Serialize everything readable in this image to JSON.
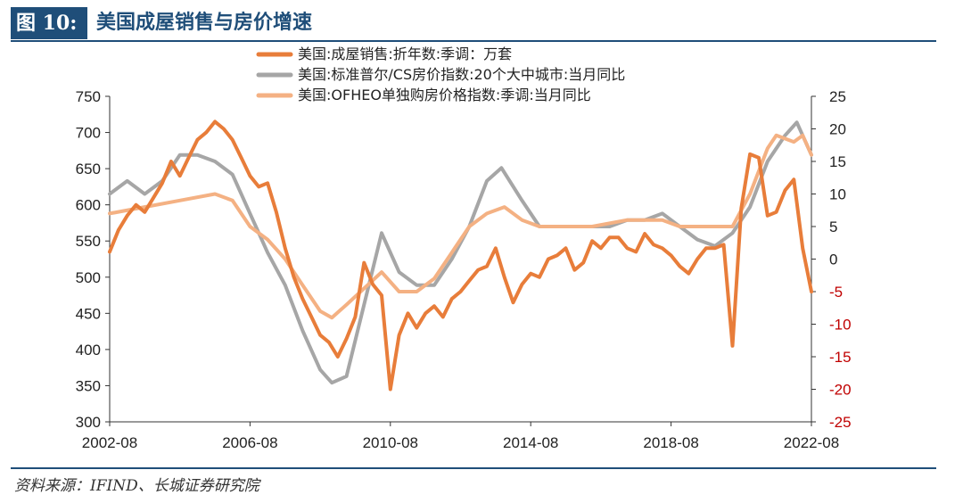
{
  "figure_tag": "图 10:",
  "title": "美国成屋销售与房价增速",
  "source": "资料来源：IFIND、长城证券研究院",
  "chart_data": {
    "type": "line",
    "x_tick_labels": [
      "2002-08",
      "2006-08",
      "2010-08",
      "2014-08",
      "2018-08",
      "2022-08"
    ],
    "x_range": [
      "2002-08",
      "2022-08"
    ],
    "y_left": {
      "range": [
        300,
        750
      ],
      "ticks": [
        300,
        350,
        400,
        450,
        500,
        550,
        600,
        650,
        700,
        750
      ]
    },
    "y_right": {
      "range": [
        -25,
        25
      ],
      "ticks": [
        -25,
        -20,
        -15,
        -10,
        -5,
        0,
        5,
        10,
        15,
        20,
        25
      ]
    },
    "grid": false,
    "legend_position": "top-center",
    "series": [
      {
        "name": "美国:成屋销售:折年数:季调：万套",
        "axis": "left",
        "color": "#e87d3a",
        "points": [
          [
            "2002-08",
            535
          ],
          [
            "2002-11",
            565
          ],
          [
            "2003-02",
            585
          ],
          [
            "2003-05",
            600
          ],
          [
            "2003-08",
            590
          ],
          [
            "2003-11",
            610
          ],
          [
            "2004-02",
            630
          ],
          [
            "2004-05",
            660
          ],
          [
            "2004-08",
            640
          ],
          [
            "2004-11",
            665
          ],
          [
            "2005-02",
            690
          ],
          [
            "2005-05",
            700
          ],
          [
            "2005-08",
            715
          ],
          [
            "2005-11",
            705
          ],
          [
            "2006-02",
            690
          ],
          [
            "2006-05",
            665
          ],
          [
            "2006-08",
            640
          ],
          [
            "2006-11",
            625
          ],
          [
            "2007-02",
            630
          ],
          [
            "2007-05",
            590
          ],
          [
            "2007-08",
            540
          ],
          [
            "2007-11",
            500
          ],
          [
            "2008-02",
            470
          ],
          [
            "2008-05",
            445
          ],
          [
            "2008-08",
            420
          ],
          [
            "2008-11",
            410
          ],
          [
            "2009-02",
            390
          ],
          [
            "2009-05",
            415
          ],
          [
            "2009-08",
            445
          ],
          [
            "2009-11",
            520
          ],
          [
            "2010-02",
            490
          ],
          [
            "2010-05",
            475
          ],
          [
            "2010-08",
            345
          ],
          [
            "2010-11",
            420
          ],
          [
            "2011-02",
            450
          ],
          [
            "2011-05",
            430
          ],
          [
            "2011-08",
            450
          ],
          [
            "2011-11",
            460
          ],
          [
            "2012-02",
            445
          ],
          [
            "2012-05",
            470
          ],
          [
            "2012-08",
            480
          ],
          [
            "2012-11",
            495
          ],
          [
            "2013-02",
            510
          ],
          [
            "2013-05",
            515
          ],
          [
            "2013-08",
            540
          ],
          [
            "2013-11",
            500
          ],
          [
            "2014-02",
            465
          ],
          [
            "2014-05",
            490
          ],
          [
            "2014-08",
            505
          ],
          [
            "2014-11",
            500
          ],
          [
            "2015-02",
            525
          ],
          [
            "2015-05",
            530
          ],
          [
            "2015-08",
            540
          ],
          [
            "2015-11",
            510
          ],
          [
            "2016-02",
            520
          ],
          [
            "2016-05",
            550
          ],
          [
            "2016-08",
            540
          ],
          [
            "2016-11",
            555
          ],
          [
            "2017-02",
            555
          ],
          [
            "2017-05",
            540
          ],
          [
            "2017-08",
            535
          ],
          [
            "2017-11",
            560
          ],
          [
            "2018-02",
            545
          ],
          [
            "2018-05",
            540
          ],
          [
            "2018-08",
            530
          ],
          [
            "2018-11",
            515
          ],
          [
            "2019-02",
            505
          ],
          [
            "2019-05",
            525
          ],
          [
            "2019-08",
            540
          ],
          [
            "2019-11",
            540
          ],
          [
            "2020-02",
            545
          ],
          [
            "2020-05",
            405
          ],
          [
            "2020-08",
            595
          ],
          [
            "2020-11",
            670
          ],
          [
            "2021-02",
            665
          ],
          [
            "2021-05",
            585
          ],
          [
            "2021-08",
            590
          ],
          [
            "2021-11",
            620
          ],
          [
            "2022-02",
            635
          ],
          [
            "2022-05",
            540
          ],
          [
            "2022-08",
            480
          ]
        ]
      },
      {
        "name": "美国:标准普尔/CS房价指数:20个大中城市:当月同比",
        "axis": "right",
        "color": "#a6a6a6",
        "points": [
          [
            "2002-08",
            10
          ],
          [
            "2003-02",
            12
          ],
          [
            "2003-08",
            10
          ],
          [
            "2004-02",
            12
          ],
          [
            "2004-08",
            16
          ],
          [
            "2005-02",
            16
          ],
          [
            "2005-08",
            15
          ],
          [
            "2006-02",
            13
          ],
          [
            "2006-08",
            7
          ],
          [
            "2007-02",
            1
          ],
          [
            "2007-08",
            -4
          ],
          [
            "2008-02",
            -11
          ],
          [
            "2008-08",
            -17
          ],
          [
            "2008-12",
            -19
          ],
          [
            "2009-05",
            -18
          ],
          [
            "2009-11",
            -7
          ],
          [
            "2010-05",
            4
          ],
          [
            "2010-11",
            -2
          ],
          [
            "2011-05",
            -4
          ],
          [
            "2011-11",
            -4
          ],
          [
            "2012-05",
            0
          ],
          [
            "2012-11",
            5
          ],
          [
            "2013-05",
            12
          ],
          [
            "2013-10",
            14
          ],
          [
            "2014-05",
            9
          ],
          [
            "2014-11",
            5
          ],
          [
            "2015-05",
            5
          ],
          [
            "2016-05",
            5
          ],
          [
            "2016-11",
            5
          ],
          [
            "2017-05",
            6
          ],
          [
            "2017-11",
            6
          ],
          [
            "2018-05",
            7
          ],
          [
            "2018-11",
            5
          ],
          [
            "2019-05",
            3
          ],
          [
            "2019-11",
            2
          ],
          [
            "2020-05",
            4
          ],
          [
            "2020-11",
            8
          ],
          [
            "2021-05",
            15
          ],
          [
            "2021-11",
            19
          ],
          [
            "2022-03",
            21
          ],
          [
            "2022-08",
            16
          ]
        ]
      },
      {
        "name": "美国:OFHEO单独购房价格指数:季调:当月同比",
        "axis": "right",
        "color": "#f4b183",
        "points": [
          [
            "2002-08",
            7
          ],
          [
            "2003-08",
            8
          ],
          [
            "2004-08",
            9
          ],
          [
            "2005-08",
            10
          ],
          [
            "2006-02",
            9
          ],
          [
            "2006-08",
            5
          ],
          [
            "2007-02",
            3
          ],
          [
            "2007-08",
            0
          ],
          [
            "2008-02",
            -4
          ],
          [
            "2008-08",
            -8
          ],
          [
            "2008-12",
            -9
          ],
          [
            "2009-05",
            -7
          ],
          [
            "2010-05",
            -2
          ],
          [
            "2010-11",
            -5
          ],
          [
            "2011-05",
            -5
          ],
          [
            "2011-11",
            -3
          ],
          [
            "2012-05",
            1
          ],
          [
            "2012-11",
            5
          ],
          [
            "2013-05",
            7
          ],
          [
            "2013-11",
            8
          ],
          [
            "2014-05",
            6
          ],
          [
            "2014-11",
            5
          ],
          [
            "2015-05",
            5
          ],
          [
            "2016-05",
            5
          ],
          [
            "2017-05",
            6
          ],
          [
            "2017-11",
            6
          ],
          [
            "2018-05",
            6
          ],
          [
            "2018-11",
            5
          ],
          [
            "2019-05",
            5
          ],
          [
            "2019-11",
            5
          ],
          [
            "2020-05",
            5
          ],
          [
            "2020-11",
            10
          ],
          [
            "2021-05",
            17
          ],
          [
            "2021-08",
            19
          ],
          [
            "2022-02",
            18
          ],
          [
            "2022-05",
            19
          ],
          [
            "2022-08",
            16
          ]
        ]
      }
    ]
  }
}
